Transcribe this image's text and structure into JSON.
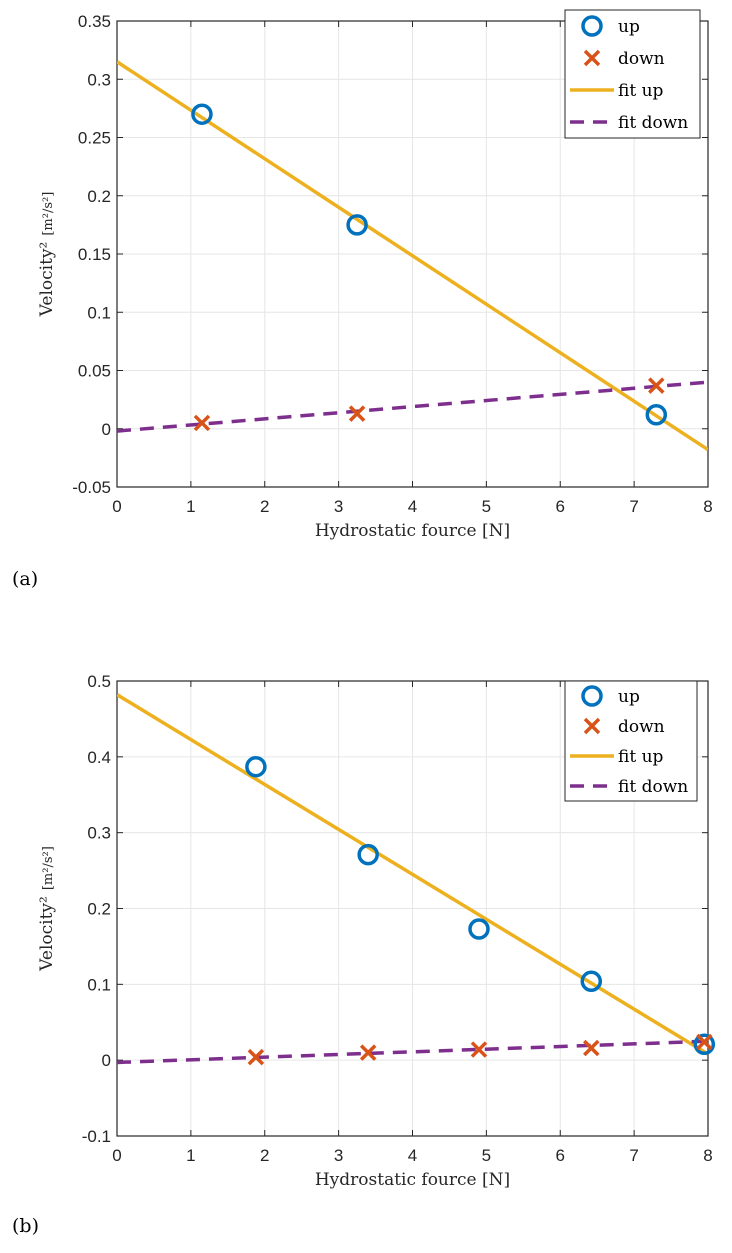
{
  "colors": {
    "up": "#0072BD",
    "down": "#D95319",
    "fit_up": "#EDB120",
    "fit_down": "#7E2F8E",
    "grid": "#e6e6e6",
    "axis": "#262626"
  },
  "chart_data": [
    {
      "type": "scatter",
      "panel_label": "(a)",
      "xlabel": "Hydrostatic fource [N]",
      "ylabel": "Velocity²",
      "yunit": "[m²/s²]",
      "xlim": [
        0,
        8
      ],
      "ylim": [
        -0.05,
        0.35
      ],
      "xticks": [
        "0",
        "1",
        "2",
        "3",
        "4",
        "5",
        "6",
        "7",
        "8"
      ],
      "yticks": [
        "-0.05",
        "0",
        "0.05",
        "0.1",
        "0.15",
        "0.2",
        "0.25",
        "0.3",
        "0.35"
      ],
      "grid": true,
      "legend_position": "top-right",
      "series": [
        {
          "name": "up",
          "kind": "marker-circle",
          "x": [
            1.15,
            3.25,
            7.3
          ],
          "y": [
            0.27,
            0.175,
            0.012
          ]
        },
        {
          "name": "down",
          "kind": "marker-x",
          "x": [
            1.15,
            3.25,
            7.3
          ],
          "y": [
            0.005,
            0.013,
            0.037
          ]
        },
        {
          "name": "fit up",
          "kind": "line-solid",
          "x": [
            0,
            8
          ],
          "y": [
            0.315,
            -0.018
          ]
        },
        {
          "name": "fit down",
          "kind": "line-dashed",
          "x": [
            0,
            8
          ],
          "y": [
            -0.002,
            0.04
          ]
        }
      ]
    },
    {
      "type": "scatter",
      "panel_label": "(b)",
      "xlabel": "Hydrostatic fource [N]",
      "ylabel": "Velocity²",
      "yunit": "[m²/s²]",
      "xlim": [
        0,
        8
      ],
      "ylim": [
        -0.1,
        0.5
      ],
      "xticks": [
        "0",
        "1",
        "2",
        "3",
        "4",
        "5",
        "6",
        "7",
        "8"
      ],
      "yticks": [
        "-0.1",
        "0",
        "0.1",
        "0.2",
        "0.3",
        "0.4",
        "0.5"
      ],
      "grid": true,
      "legend_position": "top-right",
      "series": [
        {
          "name": "up",
          "kind": "marker-circle",
          "x": [
            1.88,
            3.4,
            4.9,
            6.42,
            7.95
          ],
          "y": [
            0.387,
            0.271,
            0.173,
            0.104,
            0.021
          ]
        },
        {
          "name": "down",
          "kind": "marker-x",
          "x": [
            1.88,
            3.4,
            4.9,
            6.42,
            7.95
          ],
          "y": [
            0.004,
            0.01,
            0.014,
            0.016,
            0.024
          ]
        },
        {
          "name": "fit up",
          "kind": "line-solid",
          "x": [
            0,
            8
          ],
          "y": [
            0.482,
            0.008
          ]
        },
        {
          "name": "fit down",
          "kind": "line-dashed",
          "x": [
            0,
            8
          ],
          "y": [
            -0.003,
            0.025
          ]
        }
      ]
    }
  ]
}
